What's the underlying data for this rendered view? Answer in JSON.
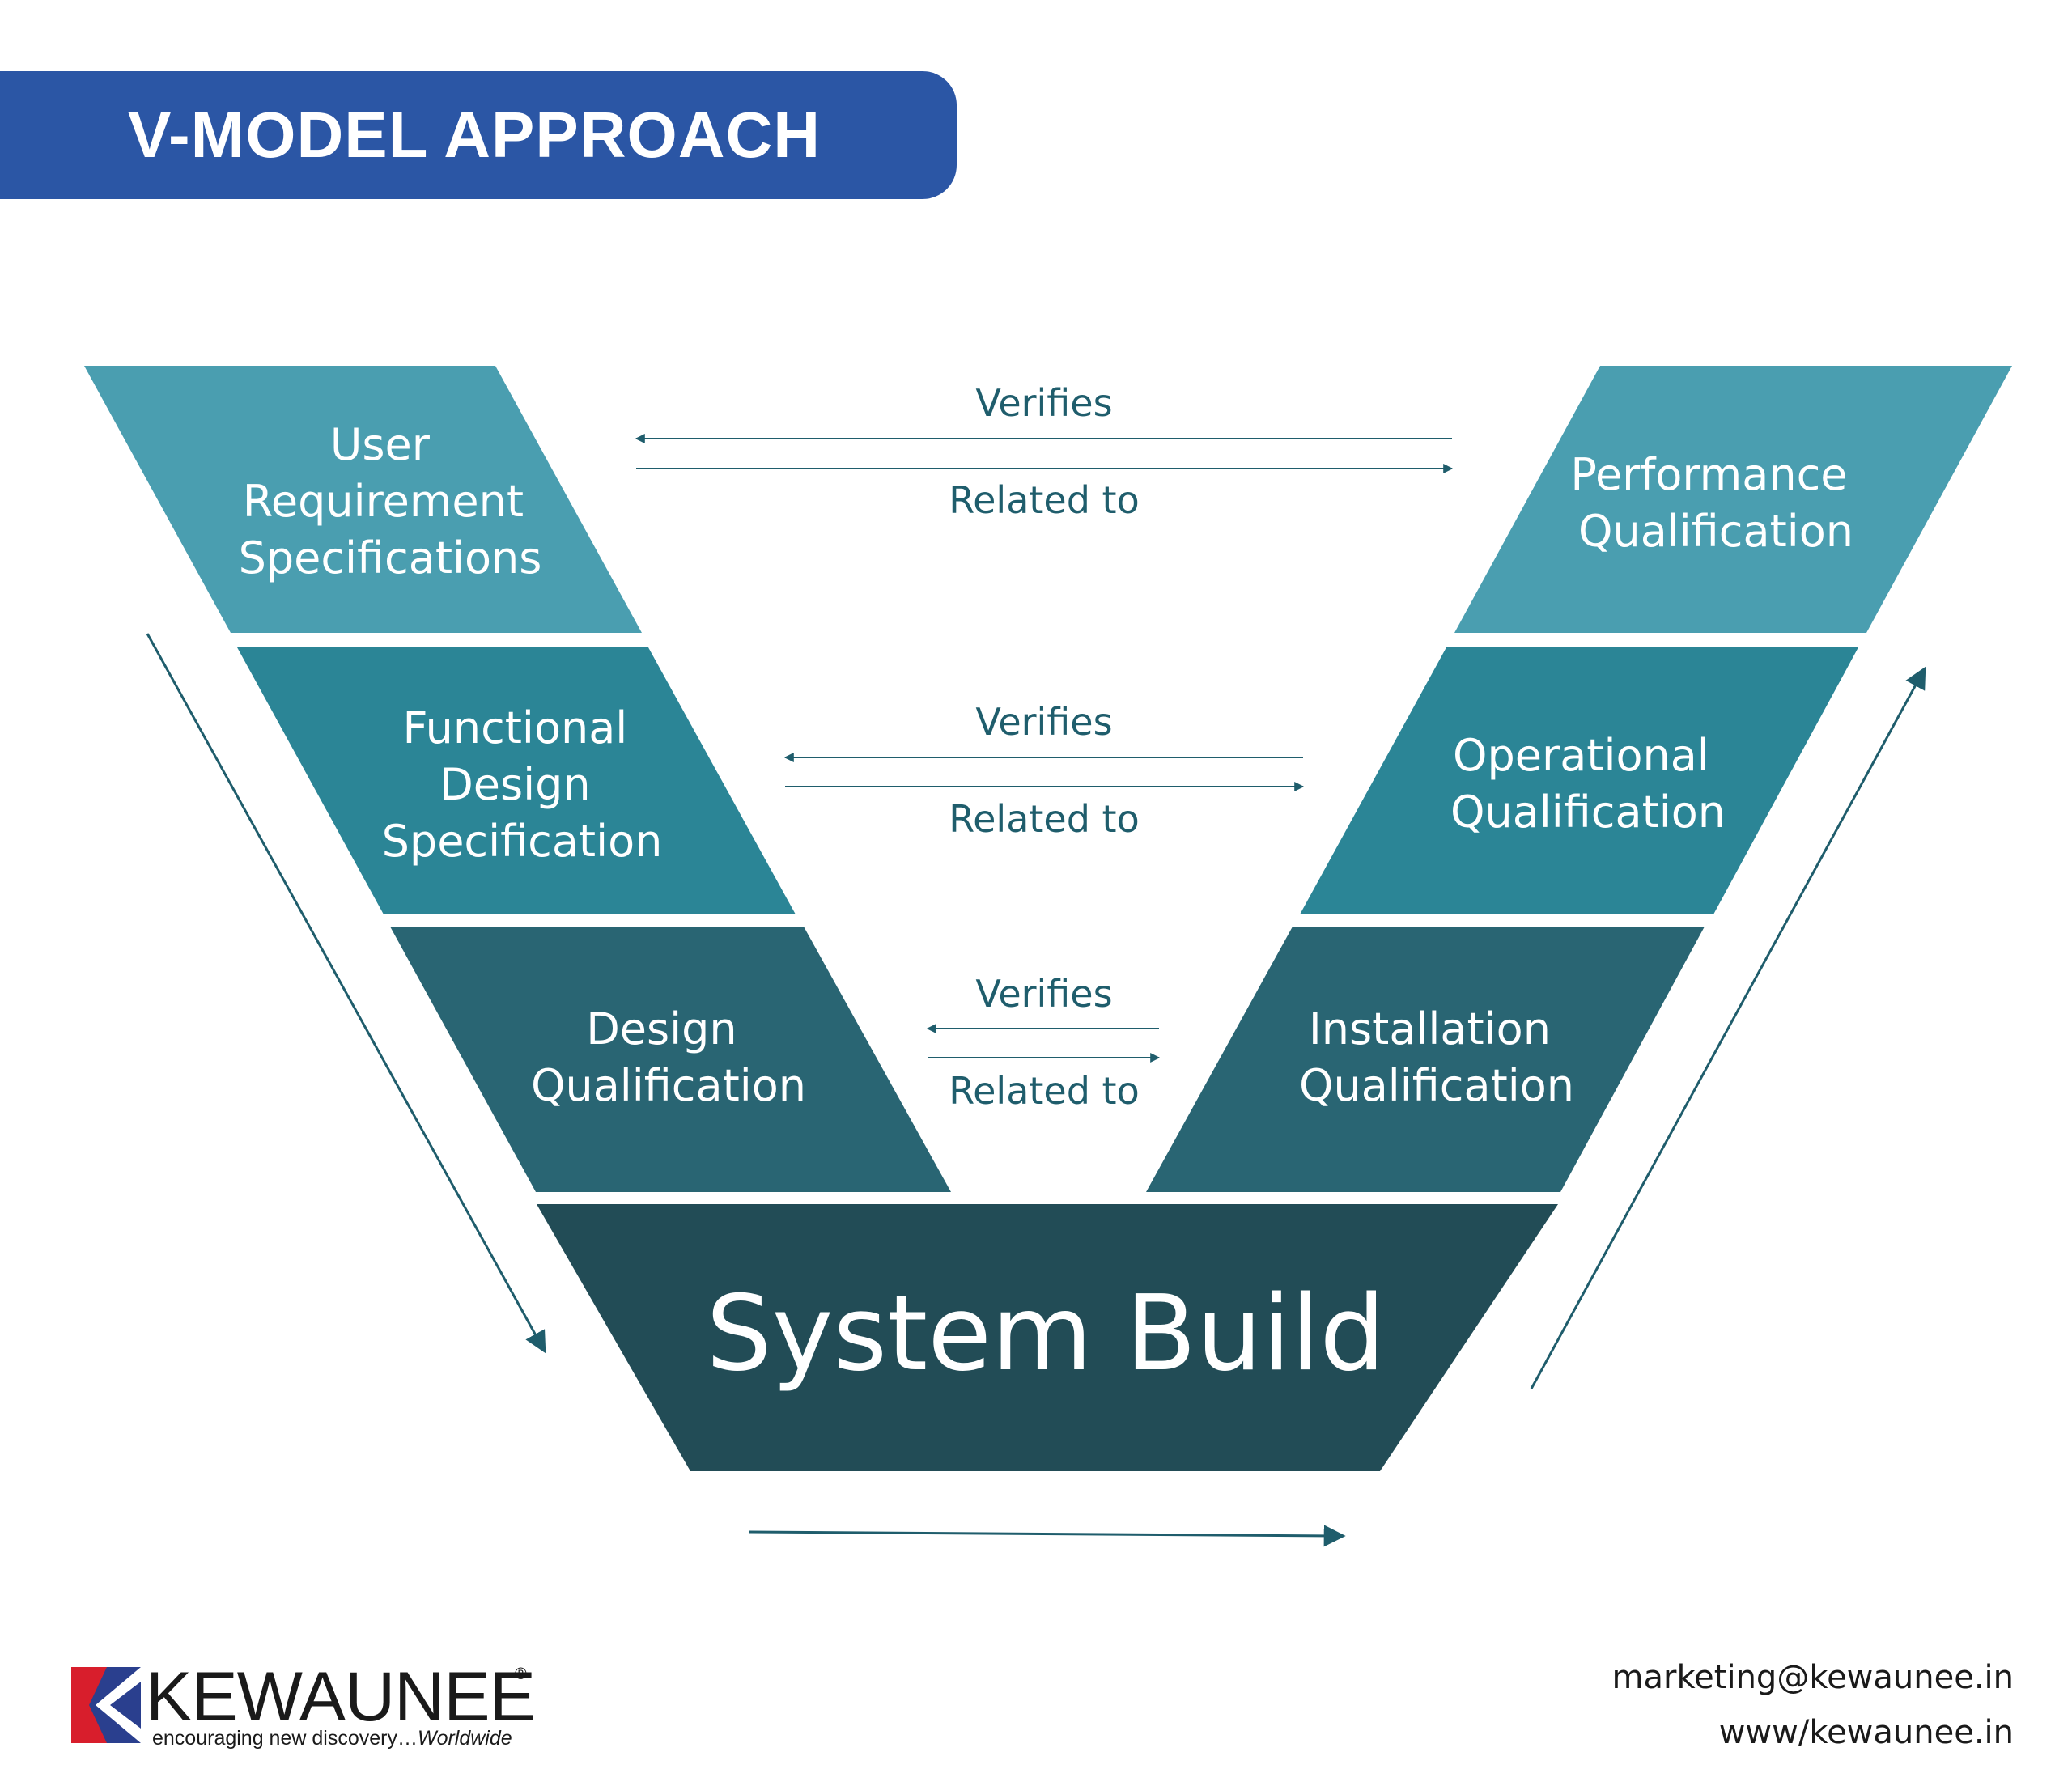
{
  "title": "V-MODEL APPROACH",
  "colors": {
    "banner": "#2b56a5",
    "level1": "#4a9eb0",
    "level2": "#2b8596",
    "level3": "#296573",
    "base": "#224c56",
    "connector": "#1f5d6c"
  },
  "left_stages": [
    {
      "lines": [
        "User",
        "Requirement",
        "Specifications"
      ]
    },
    {
      "lines": [
        "Functional",
        "Design",
        "Specification"
      ]
    },
    {
      "lines": [
        "Design",
        "Qualification"
      ]
    }
  ],
  "right_stages": [
    {
      "lines": [
        "Performance",
        "Qualification"
      ]
    },
    {
      "lines": [
        "Operational",
        "Qualification"
      ]
    },
    {
      "lines": [
        "Installation",
        "Qualification"
      ]
    }
  ],
  "base": {
    "label": "System Build"
  },
  "links": [
    {
      "top": "Verifies",
      "bottom": "Related to"
    },
    {
      "top": "Verifies",
      "bottom": "Related to"
    },
    {
      "top": "Verifies",
      "bottom": "Related to"
    }
  ],
  "logo": {
    "name": "KEWAUNEE",
    "registered": "®",
    "tagline": "encouraging new discovery…",
    "tagline_emphasis": "Worldwide"
  },
  "contact": {
    "email": "marketing@kewaunee.in",
    "website": "www/kewaunee.in"
  }
}
